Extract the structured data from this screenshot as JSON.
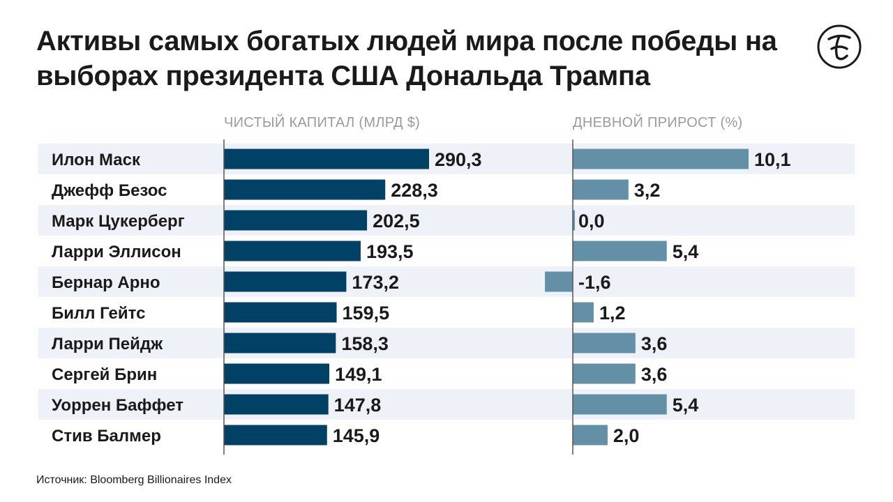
{
  "title": "Активы самых богатых людей мира после победы на выборах президента США Дональда Трампа",
  "source": "Источник: Bloomberg Billionaires Index",
  "colors": {
    "net_worth_bar": "#004165",
    "growth_bar": "#6390a6",
    "row_band": "#eef1f8",
    "axis": "#555555"
  },
  "chart_data": {
    "type": "bar",
    "orientation": "horizontal",
    "categories": [
      "Илон Маск",
      "Джефф Безос",
      "Марк Цукерберг",
      "Ларри Эллисон",
      "Бернар Арно",
      "Билл Гейтс",
      "Ларри Пейдж",
      "Сергей Брин",
      "Уоррен Баффет",
      "Стив Балмер"
    ],
    "series": [
      {
        "name": "ЧИСТЫЙ КАПИТАЛ (МЛРД $)",
        "values": [
          290.3,
          228.3,
          202.5,
          193.5,
          173.2,
          159.5,
          158.3,
          149.1,
          147.8,
          145.9
        ],
        "labels": [
          "290,3",
          "228,3",
          "202,5",
          "193,5",
          "173,2",
          "159,5",
          "158,3",
          "149,1",
          "147,8",
          "145,9"
        ]
      },
      {
        "name": "ДНЕВНОЙ ПРИРОСТ (%)",
        "values": [
          10.1,
          3.2,
          0.0,
          5.4,
          -1.6,
          1.2,
          3.6,
          3.6,
          5.4,
          2.0
        ],
        "labels": [
          "10,1",
          "3,2",
          "0,0",
          "5,4",
          "-1,6",
          "1,2",
          "3,6",
          "3,6",
          "5,4",
          "2,0"
        ]
      }
    ],
    "grid": false
  }
}
